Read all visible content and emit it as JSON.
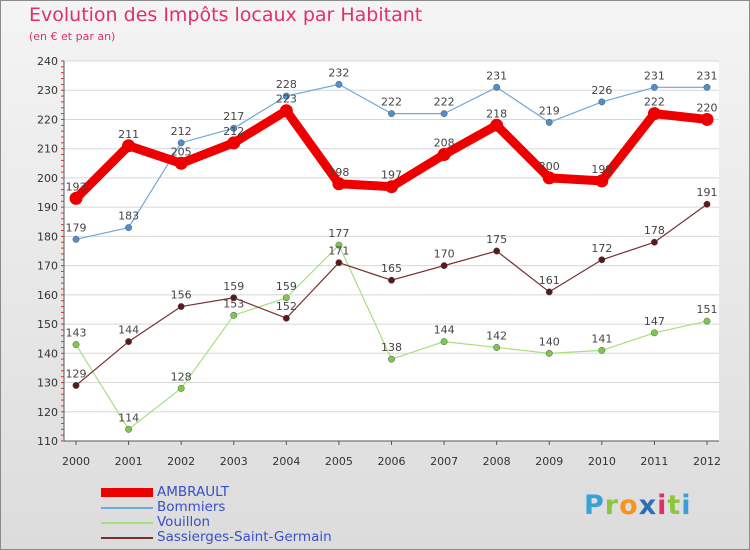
{
  "title": "Evolution des Impôts locaux par Habitant",
  "subtitle": "(en € et par an)",
  "logo": {
    "text": "Proxiti",
    "letters": [
      "P",
      "r",
      "o",
      "x",
      "i",
      "t",
      "i"
    ],
    "colors": [
      "#3aa0d8",
      "#8cc63f",
      "#f7941d",
      "#2b6fb5",
      "#e0306a",
      "#8cc63f",
      "#3aa0d8"
    ]
  },
  "chart_data": {
    "type": "line",
    "title": "Evolution des Impôts locaux par Habitant",
    "subtitle": "(en € et par an)",
    "xlabel": "",
    "ylabel": "",
    "x": [
      2000,
      2001,
      2002,
      2003,
      2004,
      2005,
      2006,
      2007,
      2008,
      2009,
      2010,
      2011,
      2012
    ],
    "ylim": [
      110,
      240
    ],
    "yticks": [
      110,
      120,
      130,
      140,
      150,
      160,
      170,
      180,
      190,
      200,
      210,
      220,
      230,
      240
    ],
    "grid": "horizontal",
    "legend_position": "bottom-left",
    "series": [
      {
        "name": "AMBRAULT",
        "color": "#ee0000",
        "emphasis": true,
        "values": [
          193,
          211,
          205,
          212,
          223,
          198,
          197,
          208,
          218,
          200,
          199,
          222,
          220
        ]
      },
      {
        "name": "Bommiers",
        "color": "#6fa8d9",
        "point_color": "#4f8fd0",
        "values": [
          179,
          183,
          212,
          217,
          228,
          232,
          222,
          222,
          231,
          219,
          226,
          231,
          231
        ]
      },
      {
        "name": "Vouillon",
        "color": "#a6e07a",
        "point_color": "#7cc84a",
        "values": [
          143,
          114,
          128,
          153,
          159,
          177,
          138,
          144,
          142,
          140,
          141,
          147,
          151
        ]
      },
      {
        "name": "Sassierges-Saint-Germain",
        "color": "#7a2f2f",
        "point_color": "#5a1a1a",
        "values": [
          129,
          144,
          156,
          159,
          152,
          171,
          165,
          170,
          175,
          161,
          172,
          178,
          191
        ]
      }
    ]
  }
}
